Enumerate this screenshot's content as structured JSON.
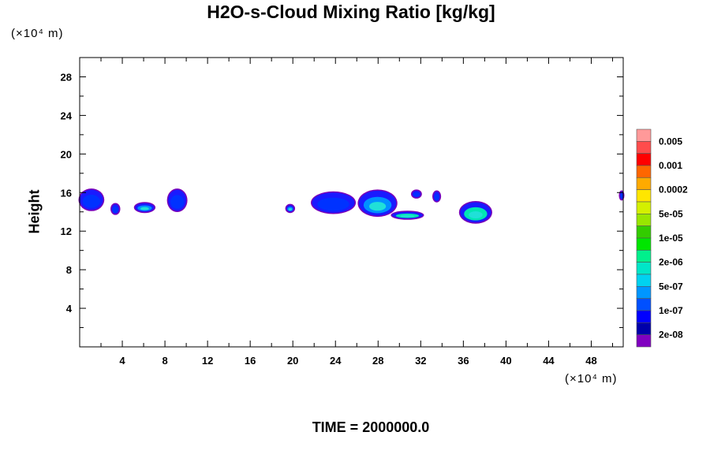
{
  "chart_data": {
    "type": "contour",
    "title": "H2O-s-Cloud Mixing Ratio [kg/kg]",
    "ylabel": "Height",
    "xlabel": "",
    "x_unit": "(×10⁴ m)",
    "y_unit": "(×10⁴ m)",
    "xlim": [
      0,
      51
    ],
    "ylim": [
      0,
      30
    ],
    "x_ticks": [
      "4",
      "8",
      "12",
      "16",
      "20",
      "24",
      "28",
      "32",
      "36",
      "40",
      "44",
      "48"
    ],
    "x_tick_values": [
      4,
      8,
      12,
      16,
      20,
      24,
      28,
      32,
      36,
      40,
      44,
      48
    ],
    "y_ticks": [
      "4",
      "8",
      "12",
      "16",
      "20",
      "24",
      "28"
    ],
    "y_tick_values": [
      4,
      8,
      12,
      16,
      20,
      24,
      28
    ],
    "colorbar": {
      "labels": [
        "0.005",
        "0.001",
        "0.0002",
        "5e-05",
        "1e-05",
        "2e-06",
        "5e-07",
        "1e-07",
        "2e-08"
      ],
      "colors": [
        "#ff9999",
        "#ff4c4c",
        "#ff0000",
        "#ff6600",
        "#ffaa00",
        "#ffe600",
        "#d4f000",
        "#99e600",
        "#33cc00",
        "#00e600",
        "#00f08c",
        "#00e6c8",
        "#00d2f0",
        "#0096ff",
        "#0050ff",
        "#0000ff",
        "#0000aa",
        "#8000c0"
      ]
    },
    "cloud_features": [
      {
        "x": [
          0,
          2.2
        ],
        "y": [
          14.2,
          16.3
        ],
        "level": "1e-07"
      },
      {
        "x": [
          3.0,
          3.7
        ],
        "y": [
          13.8,
          14.8
        ],
        "level": "1e-07"
      },
      {
        "x": [
          5.2,
          7.0
        ],
        "y": [
          14.0,
          14.9
        ],
        "level": "5e-07"
      },
      {
        "x": [
          8.3,
          10.0
        ],
        "y": [
          14.1,
          16.3
        ],
        "level": "1e-07"
      },
      {
        "x": [
          19.4,
          20.1
        ],
        "y": [
          14.0,
          14.7
        ],
        "level": "5e-07"
      },
      {
        "x": [
          21.8,
          25.8
        ],
        "y": [
          13.9,
          16.0
        ],
        "level": "1e-07"
      },
      {
        "x": [
          26.2,
          29.7
        ],
        "y": [
          13.6,
          16.2
        ],
        "level": "5e-07"
      },
      {
        "x": [
          29.3,
          32.2
        ],
        "y": [
          13.3,
          14.0
        ],
        "level": "2e-06"
      },
      {
        "x": [
          31.2,
          32.0
        ],
        "y": [
          15.5,
          16.2
        ],
        "level": "1e-07"
      },
      {
        "x": [
          33.2,
          33.8
        ],
        "y": [
          15.1,
          16.1
        ],
        "level": "1e-07"
      },
      {
        "x": [
          35.7,
          38.6
        ],
        "y": [
          12.9,
          15.0
        ],
        "level": "2e-06"
      },
      {
        "x": [
          50.7,
          51.0
        ],
        "y": [
          15.3,
          16.1
        ],
        "level": "1e-07"
      }
    ]
  },
  "footer": {
    "time_label": "TIME = 2000000.0"
  }
}
